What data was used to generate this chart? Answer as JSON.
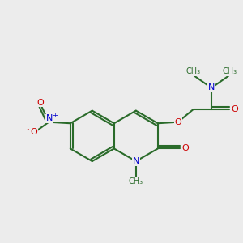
{
  "bg_color": "#ececec",
  "bond_color": "#2a6b2a",
  "N_color": "#0000cc",
  "O_color": "#cc0000",
  "lw": 1.5,
  "BL": 1.0,
  "xlim": [
    0,
    10
  ],
  "ylim": [
    0,
    10
  ]
}
